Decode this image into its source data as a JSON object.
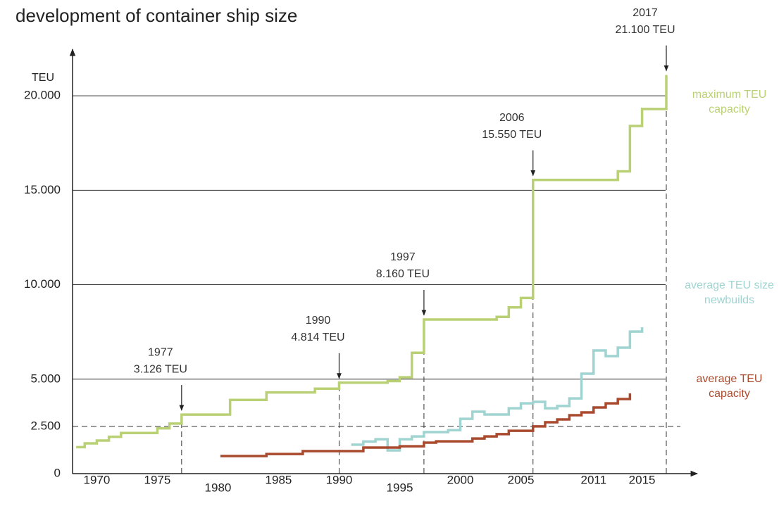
{
  "chart_data": {
    "type": "step",
    "title": "development of container ship size",
    "y_label": "TEU",
    "xlim": [
      1968,
      2019.5
    ],
    "ylim": [
      0,
      22500
    ],
    "xticks": [
      1970,
      1975,
      1980,
      1985,
      1990,
      1995,
      2000,
      2005,
      2011,
      2015
    ],
    "yticks": [
      0,
      {
        "value": 2500,
        "label": "2.500"
      },
      {
        "value": 5000,
        "label": "5.000"
      },
      {
        "value": 10000,
        "label": "10.000"
      },
      {
        "value": 15000,
        "label": "15.000"
      },
      {
        "value": 20000,
        "label": "20.000"
      }
    ],
    "grid": true,
    "grid_dash": [
      false,
      true,
      false,
      false,
      false,
      false
    ],
    "series": [
      {
        "name": "maximum TEU capacity",
        "color": "#b9d174",
        "x": [
          1968.3,
          1969,
          1970,
          1971,
          1972,
          1975,
          1976,
          1977,
          1981,
          1984,
          1988,
          1990,
          1994,
          1995,
          1996,
          1997,
          2003,
          2004,
          2005,
          2006,
          2013,
          2014,
          2015,
          2017
        ],
        "values": [
          1400,
          1600,
          1750,
          1950,
          2150,
          2400,
          2650,
          3126,
          3900,
          4300,
          4500,
          4814,
          4900,
          5100,
          6400,
          8160,
          8300,
          8800,
          9300,
          15550,
          16000,
          18400,
          19300,
          21100
        ]
      },
      {
        "name": "average TEU size newbuilds",
        "color": "#9fd4d0",
        "x": [
          1991,
          1992,
          1993,
          1994,
          1995,
          1996,
          1997,
          1999,
          2000,
          2001,
          2002,
          2004,
          2005,
          2006,
          2007,
          2008,
          2009,
          2010,
          2011,
          2012,
          2013,
          2014,
          2015
        ],
        "values": [
          1530,
          1700,
          1820,
          1230,
          1820,
          1970,
          2200,
          2300,
          2900,
          3280,
          3130,
          3460,
          3720,
          3800,
          3460,
          3580,
          3980,
          5290,
          6520,
          6220,
          6670,
          7520,
          7750
        ]
      },
      {
        "name": "average TEU capacity",
        "color": "#a94a2e",
        "x": [
          1980.2,
          1984,
          1987,
          1992,
          1995,
          1997,
          1998,
          2001,
          2002,
          2003,
          2004,
          2006,
          2007,
          2008,
          2009,
          2010,
          2011,
          2012,
          2013,
          2014
        ],
        "values": [
          930,
          1040,
          1190,
          1380,
          1450,
          1640,
          1710,
          1860,
          1970,
          2090,
          2270,
          2500,
          2720,
          2870,
          3090,
          3240,
          3500,
          3720,
          3950,
          4250
        ]
      }
    ],
    "annotations": [
      {
        "x": 1977,
        "y": 3126,
        "lines": [
          "1977",
          "3.126 TEU"
        ]
      },
      {
        "x": 1990,
        "y": 4814,
        "lines": [
          "1990",
          "4.814 TEU"
        ]
      },
      {
        "x": 1997,
        "y": 8160,
        "lines": [
          "1997",
          "8.160 TEU"
        ]
      },
      {
        "x": 2006,
        "y": 15550,
        "lines": [
          "2006",
          "15.550 TEU"
        ]
      },
      {
        "x": 2017,
        "y": 21100,
        "lines": [
          "2017",
          "21.100 TEU"
        ]
      }
    ]
  }
}
